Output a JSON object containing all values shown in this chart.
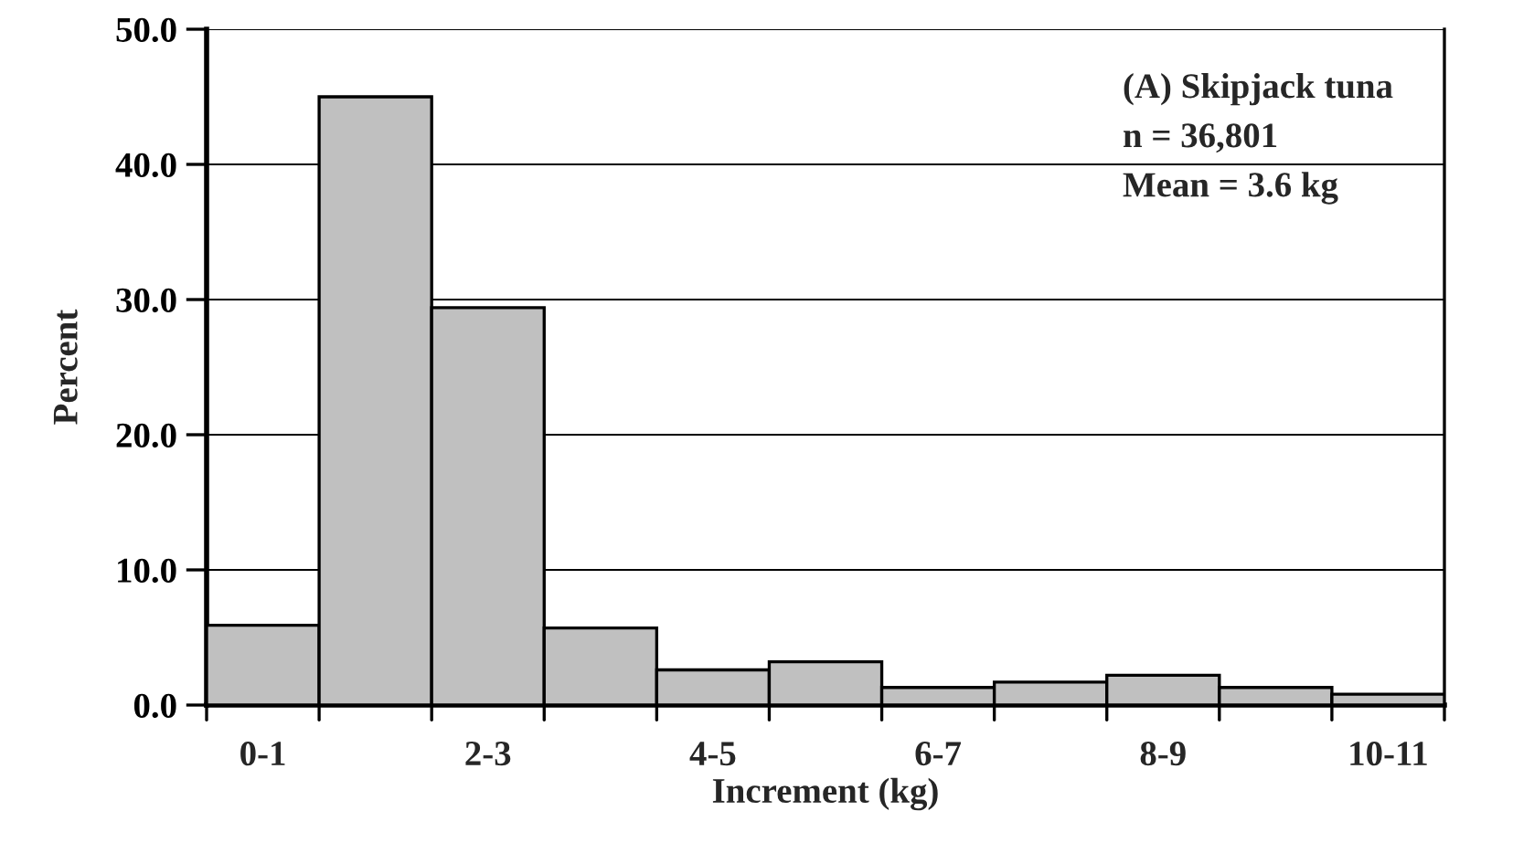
{
  "chart_data": {
    "type": "bar",
    "xlabel": "Increment (kg)",
    "ylabel": "Percent",
    "categories": [
      "0-1",
      null,
      "2-3",
      null,
      "4-5",
      null,
      "6-7",
      null,
      "8-9",
      null,
      "10-11"
    ],
    "values": [
      5.9,
      45.0,
      29.4,
      5.7,
      2.6,
      3.2,
      1.3,
      1.7,
      2.2,
      1.3,
      0.8
    ],
    "color": "#c0c0c0",
    "ylim": [
      0,
      50
    ],
    "yticks": [
      {
        "value": 0,
        "label": "0.0"
      },
      {
        "value": 10,
        "label": "10.0"
      },
      {
        "value": 20,
        "label": "20.0"
      },
      {
        "value": 30,
        "label": "30.0"
      },
      {
        "value": 40,
        "label": "40.0"
      },
      {
        "value": 50,
        "label": "50.0"
      }
    ],
    "grid": "y",
    "annotations": [
      "(A) Skipjack tuna",
      "n = 36,801",
      "Mean = 3.6 kg"
    ]
  }
}
